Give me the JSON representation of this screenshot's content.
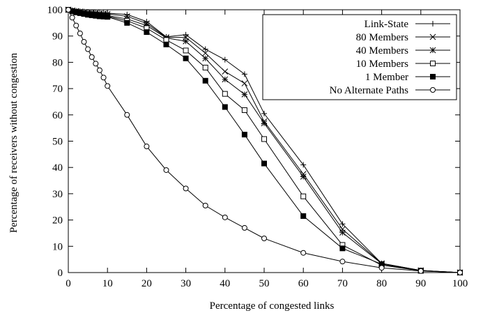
{
  "chart_data": {
    "type": "line",
    "title": "",
    "xlabel": "Percentage of congested links",
    "ylabel": "Percentage of receivers without congestion",
    "xlim": [
      0,
      100
    ],
    "ylim": [
      0,
      100
    ],
    "xticks": [
      0,
      10,
      20,
      30,
      40,
      50,
      60,
      70,
      80,
      90,
      100
    ],
    "yticks": [
      0,
      10,
      20,
      30,
      40,
      50,
      60,
      70,
      80,
      90,
      100
    ],
    "grid": false,
    "legend_position": "top-right",
    "series": [
      {
        "name": "Link-State",
        "marker": "plus",
        "x": [
          0,
          1,
          2,
          3,
          4,
          5,
          6,
          7,
          8,
          9,
          10,
          15,
          20,
          25,
          30,
          35,
          40,
          45,
          50,
          60,
          70,
          80,
          90,
          100
        ],
        "y": [
          100,
          99.8,
          99.6,
          99.4,
          99.3,
          99.2,
          99.1,
          99.0,
          98.9,
          98.8,
          98.7,
          98.2,
          95.5,
          89.7,
          90.5,
          85.0,
          81.0,
          75.5,
          60.5,
          41.0,
          18.5,
          3.5,
          0.8,
          0
        ]
      },
      {
        "name": "80 Members",
        "marker": "x",
        "x": [
          0,
          1,
          2,
          3,
          4,
          5,
          6,
          7,
          8,
          9,
          10,
          15,
          20,
          25,
          30,
          35,
          40,
          45,
          50,
          60,
          70,
          80,
          90,
          100
        ],
        "y": [
          100,
          99.7,
          99.5,
          99.3,
          99.1,
          99.0,
          98.9,
          98.8,
          98.6,
          98.5,
          98.4,
          97.5,
          94.8,
          89.5,
          89.5,
          83.5,
          76.5,
          72.0,
          57.5,
          37.5,
          16.5,
          3.5,
          0.8,
          0
        ]
      },
      {
        "name": "40 Members",
        "marker": "star",
        "x": [
          0,
          1,
          2,
          3,
          4,
          5,
          6,
          7,
          8,
          9,
          10,
          15,
          20,
          25,
          30,
          35,
          40,
          45,
          50,
          60,
          70,
          80,
          90,
          100
        ],
        "y": [
          100,
          99.6,
          99.3,
          99.0,
          98.8,
          98.6,
          98.4,
          98.2,
          98.1,
          98.0,
          97.8,
          96.5,
          94.0,
          89.3,
          88.0,
          81.5,
          73.5,
          67.8,
          56.8,
          36.5,
          15.2,
          3.4,
          0.8,
          0
        ]
      },
      {
        "name": "10 Members",
        "marker": "square-open",
        "x": [
          0,
          1,
          2,
          3,
          4,
          5,
          6,
          7,
          8,
          9,
          10,
          15,
          20,
          25,
          30,
          35,
          40,
          45,
          50,
          60,
          70,
          80,
          90,
          100
        ],
        "y": [
          100,
          99.5,
          99.2,
          98.9,
          98.6,
          98.3,
          98.1,
          97.9,
          97.7,
          97.6,
          97.5,
          95.8,
          93.0,
          88.5,
          84.5,
          78.0,
          68.0,
          61.8,
          50.8,
          29.0,
          10.5,
          2.8,
          0.7,
          0
        ]
      },
      {
        "name": "1 Member",
        "marker": "square-filled",
        "x": [
          0,
          1,
          2,
          3,
          4,
          5,
          6,
          7,
          8,
          9,
          10,
          15,
          20,
          25,
          30,
          35,
          40,
          45,
          50,
          60,
          70,
          80,
          90,
          100
        ],
        "y": [
          100,
          99.4,
          99.0,
          98.7,
          98.4,
          98.1,
          97.9,
          97.7,
          97.5,
          97.4,
          97.3,
          95.0,
          91.5,
          86.8,
          81.5,
          73.0,
          63.0,
          52.5,
          41.5,
          21.5,
          9.2,
          3.2,
          0.7,
          0
        ]
      },
      {
        "name": "No Alternate Paths",
        "marker": "circle-open",
        "x": [
          0,
          1,
          2,
          3,
          4,
          5,
          6,
          7,
          8,
          9,
          10,
          15,
          20,
          25,
          30,
          35,
          40,
          45,
          50,
          60,
          70,
          80,
          90,
          100
        ],
        "y": [
          100,
          97.0,
          94.0,
          91.0,
          87.8,
          85.0,
          82.0,
          79.5,
          77.0,
          74.2,
          71.0,
          60.0,
          48.0,
          39.0,
          32.0,
          25.5,
          21.0,
          17.0,
          13.0,
          7.5,
          4.2,
          1.8,
          0.6,
          0
        ]
      }
    ]
  }
}
